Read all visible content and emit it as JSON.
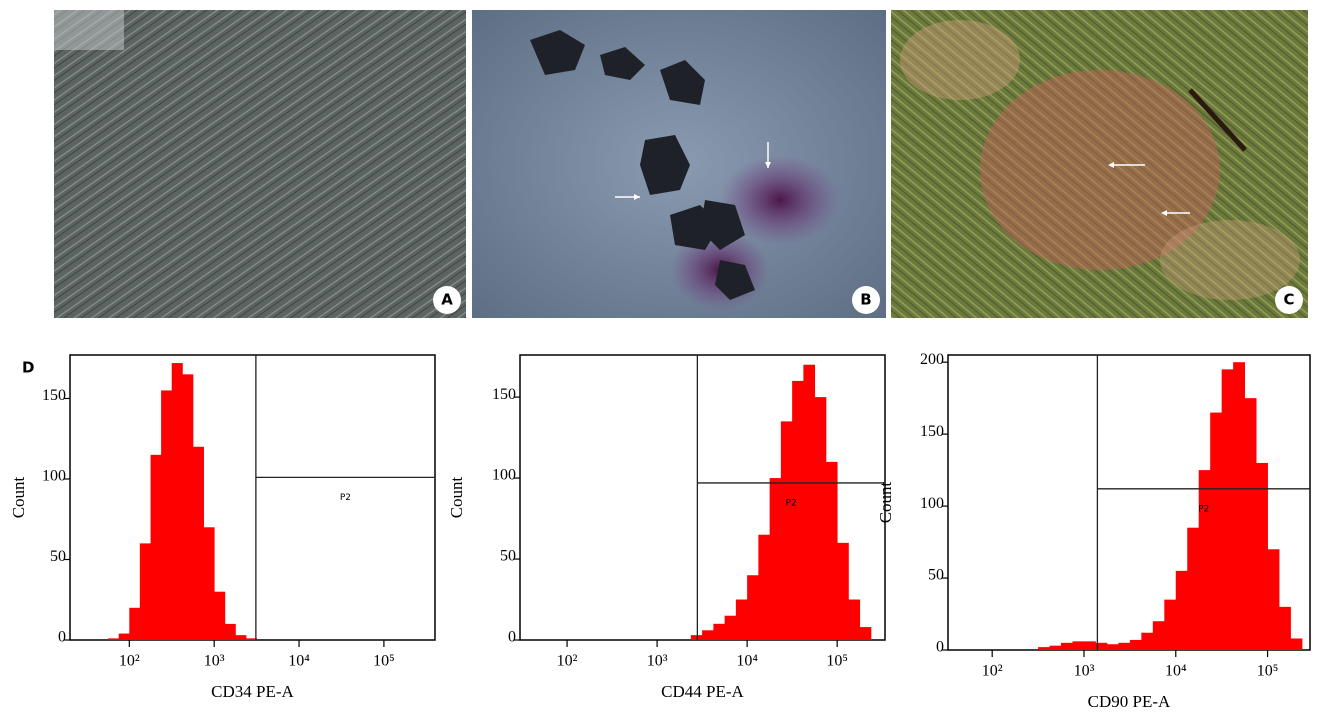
{
  "panels": [
    {
      "label": "A"
    },
    {
      "label": "B"
    },
    {
      "label": "C"
    }
  ],
  "panel_d_label": "D",
  "chart_data": [
    {
      "type": "histogram",
      "xlabel": "CD34 PE-A",
      "ylabel": "Count",
      "xscale": "log",
      "color": "#ff0000",
      "xlim": [
        20,
        400000
      ],
      "ylim": [
        0,
        177
      ],
      "xticks": [
        {
          "value": 100,
          "label": "10²"
        },
        {
          "value": 1000,
          "label": "10³"
        },
        {
          "value": 10000,
          "label": "10⁴"
        },
        {
          "value": 100000,
          "label": "10⁵"
        }
      ],
      "yticks": [
        0,
        50,
        100,
        150
      ],
      "gate": {
        "label": "P2",
        "x": 3100,
        "y": 101
      },
      "bins": [
        31.6,
        42.2,
        56.2,
        75,
        100,
        133,
        178,
        237,
        316,
        422,
        562,
        750,
        1000,
        1334,
        1778,
        2371,
        3162,
        4217,
        5623,
        7499,
        10000,
        13335,
        17783,
        23714,
        31623,
        42170,
        56234,
        74989,
        100000,
        133352,
        177828,
        237137,
        316228
      ],
      "counts": [
        0,
        0,
        1,
        4,
        20,
        60,
        115,
        155,
        172,
        165,
        120,
        70,
        30,
        10,
        3,
        1,
        0,
        0,
        0,
        0,
        0,
        0,
        0,
        0,
        0,
        0,
        0,
        0,
        0,
        0,
        0,
        0
      ]
    },
    {
      "type": "histogram",
      "xlabel": "CD44 PE-A",
      "ylabel": "Count",
      "xscale": "log",
      "color": "#ff0000",
      "xlim": [
        30,
        340000
      ],
      "ylim": [
        0,
        176
      ],
      "xticks": [
        {
          "value": 100,
          "label": "10²"
        },
        {
          "value": 1000,
          "label": "10³"
        },
        {
          "value": 10000,
          "label": "10⁴"
        },
        {
          "value": 100000,
          "label": "10⁵"
        }
      ],
      "yticks": [
        0,
        50,
        100,
        150
      ],
      "gate": {
        "label": "P2",
        "x": 2800,
        "y": 97
      },
      "bins": [
        31.6,
        42.2,
        56.2,
        75,
        100,
        133,
        178,
        237,
        316,
        422,
        562,
        750,
        1000,
        1334,
        1778,
        2371,
        3162,
        4217,
        5623,
        7499,
        10000,
        13335,
        17783,
        23714,
        31623,
        42170,
        56234,
        74989,
        100000,
        133352,
        177828,
        237137,
        316228
      ],
      "counts": [
        0,
        0,
        0,
        0,
        0,
        0,
        0,
        0,
        0,
        0,
        0,
        0,
        0,
        0,
        0,
        3,
        6,
        10,
        15,
        25,
        40,
        65,
        100,
        135,
        160,
        170,
        150,
        110,
        60,
        25,
        8,
        0
      ]
    },
    {
      "type": "histogram",
      "xlabel": "CD90 PE-A",
      "ylabel": "Count",
      "xscale": "log",
      "color": "#ff0000",
      "xlim": [
        33,
        290000
      ],
      "ylim": [
        0,
        205
      ],
      "xticks": [
        {
          "value": 100,
          "label": "10²"
        },
        {
          "value": 1000,
          "label": "10³"
        },
        {
          "value": 10000,
          "label": "10⁴"
        },
        {
          "value": 100000,
          "label": "10⁵"
        }
      ],
      "yticks": [
        0,
        50,
        100,
        150,
        200
      ],
      "gate": {
        "label": "P2",
        "x": 1400,
        "y": 112
      },
      "bins": [
        31.6,
        42.2,
        56.2,
        75,
        100,
        133,
        178,
        237,
        316,
        422,
        562,
        750,
        1000,
        1334,
        1778,
        2371,
        3162,
        4217,
        5623,
        7499,
        10000,
        13335,
        17783,
        23714,
        31623,
        42170,
        56234,
        74989,
        100000,
        133352,
        177828,
        237137,
        316228
      ],
      "counts": [
        0,
        0,
        0,
        0,
        0,
        0,
        0,
        0,
        2,
        3,
        5,
        6,
        6,
        5,
        4,
        5,
        7,
        12,
        20,
        35,
        55,
        85,
        125,
        165,
        195,
        200,
        175,
        130,
        70,
        30,
        8,
        0
      ]
    }
  ]
}
